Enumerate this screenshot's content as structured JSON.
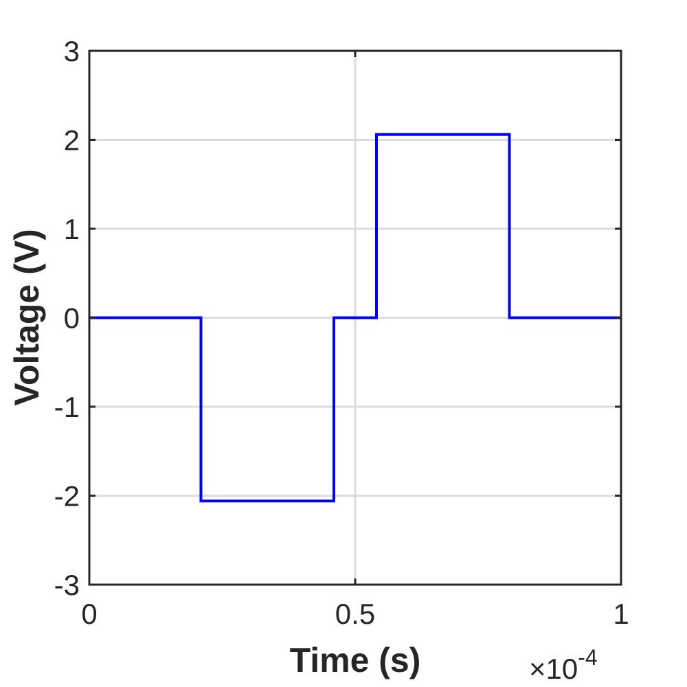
{
  "chart_data": {
    "type": "line",
    "title": "",
    "xlabel": "Time (s)",
    "ylabel": "Voltage (V)",
    "x_multiplier": {
      "base": "×10",
      "exponent": "-4"
    },
    "xlim": [
      0,
      1
    ],
    "ylim": [
      -3,
      3
    ],
    "x_ticks": [
      0,
      0.5,
      1
    ],
    "x_tick_labels": [
      "0",
      "0.5",
      "1"
    ],
    "y_ticks": [
      3,
      2,
      1,
      0,
      -1,
      -2,
      -3
    ],
    "y_tick_labels": [
      "3",
      "2",
      "1",
      "0",
      "-1",
      "-2",
      "-3"
    ],
    "grid": true,
    "colors": {
      "line": "#0000ff",
      "grid": "#dcdcdc",
      "axes": "#262626"
    },
    "series": [
      {
        "x": [
          0,
          0.21,
          0.21,
          0.46,
          0.46,
          0.54,
          0.54,
          0.79,
          0.79,
          1.0
        ],
        "y": [
          0,
          0,
          -2.06,
          -2.06,
          0,
          0,
          2.06,
          2.06,
          0,
          0
        ]
      }
    ]
  }
}
